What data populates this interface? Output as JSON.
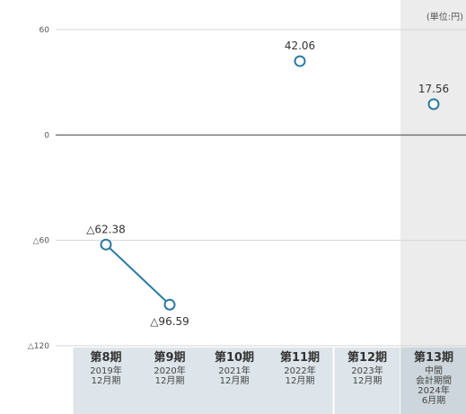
{
  "chart_data": {
    "type": "line",
    "unit_label": "(単位:円)",
    "categories": [
      {
        "period": "第8期",
        "lines": [
          "2019年",
          "12月期"
        ]
      },
      {
        "period": "第9期",
        "lines": [
          "2020年",
          "12月期"
        ]
      },
      {
        "period": "第10期",
        "lines": [
          "2021年",
          "12月期"
        ]
      },
      {
        "period": "第11期",
        "lines": [
          "2022年",
          "12月期"
        ]
      },
      {
        "period": "第12期",
        "lines": [
          "2023年",
          "12月期"
        ]
      },
      {
        "period": "第13期",
        "lines": [
          "中間",
          "会計期間",
          "2024年",
          "6月期"
        ]
      }
    ],
    "points": [
      {
        "index": 0,
        "value": -62.38,
        "label": "△62.38"
      },
      {
        "index": 1,
        "value": -96.59,
        "label": "△96.59"
      },
      {
        "index": 3,
        "value": 42.06,
        "label": "42.06"
      },
      {
        "index": 5,
        "value": 17.56,
        "label": "17.56"
      }
    ],
    "connected_segments": [
      [
        0,
        1
      ]
    ],
    "y_ticks": [
      {
        "value": 60,
        "label": "60"
      },
      {
        "value": 0,
        "label": "0"
      },
      {
        "value": -60,
        "label": "△60"
      },
      {
        "value": -120,
        "label": "△120"
      }
    ],
    "ylim": [
      -120,
      60
    ],
    "highlight_index": 5,
    "colors": {
      "series": "#2a7aa0",
      "marker_fill": "#ffffff",
      "grid": "#d5d5d5",
      "zero_line": "#777777",
      "highlight_bg": "#ececec",
      "category_bg": "#dde5ea",
      "highlight_category_bg": "#ccd6dc"
    }
  }
}
